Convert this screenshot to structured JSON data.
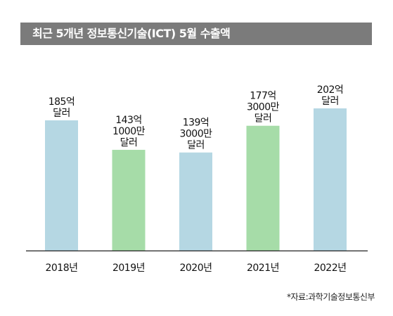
{
  "title": "최근 5개년 정보통신기술(ICT) 5월 수출액",
  "source": "*자료:과학기술정보통신부",
  "colors": {
    "title_bg": "#7b7b7b",
    "bar_blue": "#b5d7e3",
    "bar_green": "#a6dca8",
    "baseline": "#222222"
  },
  "chart_data": {
    "type": "bar",
    "title": "최근 5개년 정보통신기술(ICT) 5월 수출액",
    "categories": [
      "2018년",
      "2019년",
      "2020년",
      "2021년",
      "2022년"
    ],
    "values": [
      185,
      143.1,
      139.3,
      177.3,
      202
    ],
    "unit": "억 달러",
    "data_labels": [
      [
        "185억",
        "달러"
      ],
      [
        "143억",
        "1000만",
        "달러"
      ],
      [
        "139억",
        "3000만",
        "달러"
      ],
      [
        "177억",
        "3000만",
        "달러"
      ],
      [
        "202억",
        "달러"
      ]
    ],
    "bar_colors": [
      "blue",
      "green",
      "blue",
      "green",
      "blue"
    ],
    "grid": false,
    "legend": "none"
  }
}
